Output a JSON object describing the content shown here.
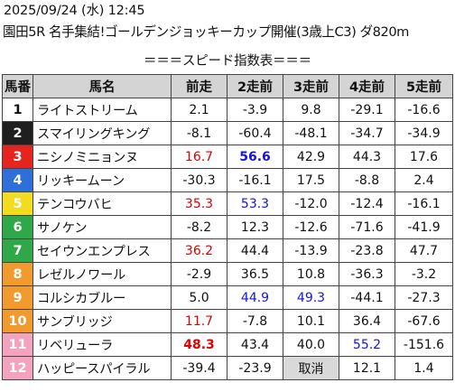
{
  "header": {
    "datetime": "2025/09/24 (水) 12:45",
    "race": "園田5R 名手集結!ゴールデンジョッキーカップ開催(3歳上C3) ダ820m",
    "subtitle": "＝＝＝スピード指数表＝＝＝"
  },
  "columns": [
    "馬番",
    "馬名",
    "前走",
    "2走前",
    "3走前",
    "4走前",
    "5走前"
  ],
  "gate_colors": {
    "1": {
      "bg": "#ffffff",
      "fg": "#111111"
    },
    "2": {
      "bg": "#1f1f1f",
      "fg": "#ffffff"
    },
    "3": {
      "bg": "#e52420",
      "fg": "#ffffff"
    },
    "4": {
      "bg": "#2f6fd8",
      "fg": "#ffffff"
    },
    "5": {
      "bg": "#f3dc1f",
      "fg": "#ffffff"
    },
    "6": {
      "bg": "#2fa84a",
      "fg": "#ffffff"
    },
    "7": {
      "bg": "#2fa84a",
      "fg": "#ffffff"
    },
    "8": {
      "bg": "#f29a2e",
      "fg": "#ffffff"
    },
    "9": {
      "bg": "#f29a2e",
      "fg": "#ffffff"
    },
    "10": {
      "bg": "#f29a2e",
      "fg": "#ffffff"
    },
    "11": {
      "bg": "#f4a3be",
      "fg": "#ffffff"
    },
    "12": {
      "bg": "#f4a3be",
      "fg": "#ffffff"
    }
  },
  "rows": [
    {
      "no": "1",
      "name": "ライトストリーム",
      "v": [
        "2.1",
        "-3.9",
        "9.8",
        "-29.1",
        "-16.6"
      ],
      "style": [
        "",
        "",
        "",
        "",
        ""
      ]
    },
    {
      "no": "2",
      "name": "スマイリングキング",
      "v": [
        "-8.1",
        "-60.4",
        "-48.1",
        "-34.7",
        "-34.9"
      ],
      "style": [
        "",
        "",
        "",
        "",
        ""
      ]
    },
    {
      "no": "3",
      "name": "ニシノミニョンヌ",
      "v": [
        "16.7",
        "56.6",
        "42.9",
        "44.3",
        "17.6"
      ],
      "style": [
        "red",
        "blue bold",
        "",
        "",
        ""
      ]
    },
    {
      "no": "4",
      "name": "リッキームーン",
      "v": [
        "-30.3",
        "-16.1",
        "17.5",
        "-8.8",
        "2.4"
      ],
      "style": [
        "",
        "",
        "",
        "",
        ""
      ]
    },
    {
      "no": "5",
      "name": "テンコウバヒ",
      "v": [
        "35.3",
        "53.3",
        "-12.0",
        "-12.4",
        "-16.1"
      ],
      "style": [
        "red",
        "blue",
        "",
        "",
        ""
      ]
    },
    {
      "no": "6",
      "name": "サノケン",
      "v": [
        "-8.2",
        "12.3",
        "-12.6",
        "-71.6",
        "-41.9"
      ],
      "style": [
        "",
        "",
        "",
        "",
        ""
      ]
    },
    {
      "no": "7",
      "name": "セイウンエンプレス",
      "v": [
        "36.2",
        "44.4",
        "-13.9",
        "-23.8",
        "47.7"
      ],
      "style": [
        "red",
        "",
        "",
        "",
        ""
      ]
    },
    {
      "no": "8",
      "name": "レゼルノワール",
      "v": [
        "-2.9",
        "36.5",
        "10.8",
        "-36.3",
        "-3.2"
      ],
      "style": [
        "",
        "",
        "",
        "",
        ""
      ]
    },
    {
      "no": "9",
      "name": "コルシカブルー",
      "v": [
        "5.0",
        "44.9",
        "49.3",
        "-44.1",
        "-27.3"
      ],
      "style": [
        "",
        "blue",
        "blue",
        "",
        ""
      ]
    },
    {
      "no": "10",
      "name": "サンブリッジ",
      "v": [
        "11.7",
        "-7.8",
        "10.1",
        "36.4",
        "-67.6"
      ],
      "style": [
        "red",
        "",
        "",
        "",
        ""
      ]
    },
    {
      "no": "11",
      "name": "リベリューラ",
      "v": [
        "48.3",
        "43.4",
        "40.0",
        "55.2",
        "-151.6"
      ],
      "style": [
        "red bold",
        "",
        "",
        "blue",
        ""
      ]
    },
    {
      "no": "12",
      "name": "ハッピースパイラル",
      "v": [
        "-39.4",
        "-23.9",
        "取消",
        "12.1",
        "1.4"
      ],
      "style": [
        "",
        "",
        "cancel",
        "",
        ""
      ]
    }
  ]
}
